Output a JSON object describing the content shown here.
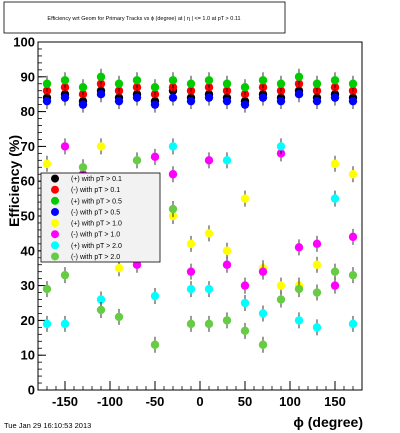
{
  "footer": {
    "timestamp": "Tue Jan 29 16:10:53 2013"
  },
  "chart_data": {
    "type": "scatter",
    "title": "Efficiency wrt Geom for Primary Tracks vs ϕ (degree) at | η | <= 1.0 at pT > 0.11",
    "xlabel": "ϕ (degree)",
    "ylabel": "Efficiency (%)",
    "xlim": [
      -180,
      180
    ],
    "ylim": [
      0,
      100
    ],
    "xticks": [
      -150,
      -100,
      -50,
      0,
      50,
      100,
      150
    ],
    "yticks": [
      0,
      10,
      20,
      30,
      40,
      50,
      60,
      70,
      80,
      90,
      100
    ],
    "grid": false,
    "legend_position": "left-middle",
    "series": [
      {
        "name": "(+) with pT > 0.1",
        "color": "#000000",
        "x": [
          -170,
          -150,
          -130,
          -110,
          -90,
          -70,
          -50,
          -30,
          -10,
          10,
          30,
          50,
          70,
          90,
          110,
          130,
          150,
          170
        ],
        "y": [
          84,
          85,
          83,
          86,
          84,
          85,
          83,
          86,
          84,
          85,
          84,
          83,
          85,
          84,
          86,
          84,
          85,
          84
        ]
      },
      {
        "name": "(-) with pT > 0.1",
        "color": "#ff0000",
        "x": [
          -170,
          -150,
          -130,
          -110,
          -90,
          -70,
          -50,
          -30,
          -10,
          10,
          30,
          50,
          70,
          90,
          110,
          130,
          150,
          170
        ],
        "y": [
          86,
          87,
          85,
          88,
          86,
          87,
          85,
          87,
          86,
          87,
          86,
          85,
          87,
          86,
          88,
          86,
          87,
          86
        ]
      },
      {
        "name": "(+) with pT > 0.5",
        "color": "#00cc00",
        "x": [
          -170,
          -150,
          -130,
          -110,
          -90,
          -70,
          -50,
          -30,
          -10,
          10,
          30,
          50,
          70,
          90,
          110,
          130,
          150,
          170
        ],
        "y": [
          88,
          89,
          87,
          90,
          88,
          89,
          87,
          89,
          88,
          89,
          88,
          87,
          89,
          88,
          90,
          88,
          89,
          88
        ]
      },
      {
        "name": "(-) with pT > 0.5",
        "color": "#0000ff",
        "x": [
          -170,
          -150,
          -130,
          -110,
          -90,
          -70,
          -50,
          -30,
          -10,
          10,
          30,
          50,
          70,
          90,
          110,
          130,
          150,
          170
        ],
        "y": [
          83,
          84,
          82,
          85,
          83,
          84,
          82,
          84,
          83,
          84,
          83,
          82,
          84,
          83,
          85,
          83,
          84,
          83
        ]
      },
      {
        "name": "(+) with pT > 1.0",
        "color": "#ffff00",
        "x": [
          -170,
          -150,
          -130,
          -110,
          -90,
          -70,
          -50,
          -30,
          -10,
          10,
          30,
          50,
          70,
          90,
          110,
          130,
          150,
          170
        ],
        "y": [
          65,
          42,
          55,
          70,
          35,
          40,
          46,
          50,
          42,
          45,
          40,
          55,
          35,
          30,
          30,
          36,
          65,
          62
        ]
      },
      {
        "name": "(-) with pT > 1.0",
        "color": "#ff00ff",
        "x": [
          -170,
          -150,
          -130,
          -110,
          -90,
          -70,
          -50,
          -30,
          -10,
          10,
          30,
          50,
          70,
          90,
          110,
          130,
          150,
          170
        ],
        "y": [
          42,
          70,
          62,
          40,
          48,
          36,
          67,
          62,
          34,
          66,
          36,
          30,
          34,
          68,
          41,
          42,
          30,
          44
        ]
      },
      {
        "name": "(+) with pT > 2.0",
        "color": "#00ffff",
        "x": [
          -170,
          -150,
          -130,
          -110,
          -90,
          -70,
          -50,
          -30,
          -10,
          10,
          30,
          50,
          70,
          90,
          110,
          130,
          150,
          170
        ],
        "y": [
          19,
          19,
          55,
          26,
          59,
          40,
          27,
          70,
          29,
          29,
          66,
          25,
          22,
          70,
          20,
          18,
          55,
          19
        ]
      },
      {
        "name": "(-) with pT > 2.0",
        "color": "#66cc44",
        "x": [
          -170,
          -150,
          -130,
          -110,
          -90,
          -70,
          -50,
          -30,
          -10,
          10,
          30,
          50,
          70,
          90,
          110,
          130,
          150,
          170
        ],
        "y": [
          29,
          33,
          64,
          23,
          21,
          66,
          13,
          52,
          19,
          19,
          20,
          17,
          13,
          26,
          29,
          28,
          34,
          33
        ]
      }
    ]
  }
}
